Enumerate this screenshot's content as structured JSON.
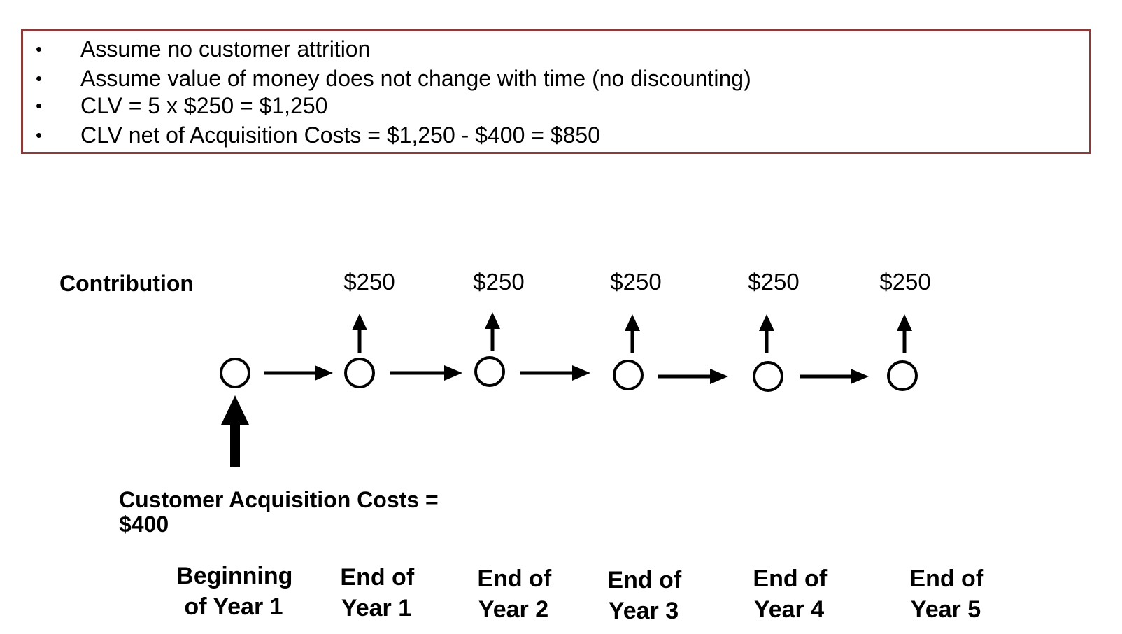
{
  "assumptions": {
    "border_color": "#8B3A3A",
    "bullet": "•",
    "items": [
      "Assume no customer attrition",
      "Assume value of money does not change with time (no discounting)",
      "CLV = 5 x $250 = $1,250",
      "CLV net of Acquisition Costs = $1,250 - $400 = $850"
    ]
  },
  "diagram": {
    "contribution_label": "Contribution",
    "contributions": [
      "$250",
      "$250",
      "$250",
      "$250",
      "$250"
    ],
    "acquisition_cost_label": [
      "Customer Acquisition Costs =",
      "$400"
    ],
    "time_points": [
      [
        "Beginning",
        "of Year 1"
      ],
      [
        "End of",
        "Year 1"
      ],
      [
        "End of",
        "Year 2"
      ],
      [
        "End of",
        "Year 3"
      ],
      [
        "End of",
        "Year 4"
      ],
      [
        "End of",
        "Year 5"
      ]
    ]
  }
}
